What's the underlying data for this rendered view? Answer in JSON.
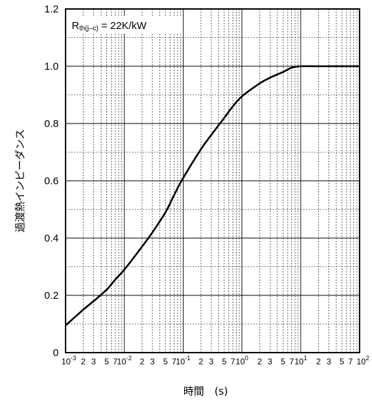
{
  "chart_data": {
    "type": "line",
    "title": "",
    "xlabel": "時間　(s)",
    "ylabel": "過渡熱インピーダンス",
    "x_scale": "log",
    "xlim": [
      0.001,
      100
    ],
    "ylim": [
      0,
      1.2
    ],
    "grid": true,
    "annotation": {
      "main": "R",
      "sub": "th(j–c)",
      "rest": " = 22K/kW"
    },
    "y_ticks": [
      {
        "value": 0,
        "label": "0"
      },
      {
        "value": 0.2,
        "label": "0.2"
      },
      {
        "value": 0.4,
        "label": "0.4"
      },
      {
        "value": 0.6,
        "label": "0.6"
      },
      {
        "value": 0.8,
        "label": "0.8"
      },
      {
        "value": 1.0,
        "label": "1.0"
      },
      {
        "value": 1.2,
        "label": "1.2"
      }
    ],
    "x_decade_labels": [
      {
        "value": 0.001,
        "base": "10",
        "exp": "-3"
      },
      {
        "value": 0.01,
        "base": "10",
        "exp": "-2"
      },
      {
        "value": 0.1,
        "base": "10",
        "exp": "-1"
      },
      {
        "value": 1,
        "base": "10",
        "exp": "0"
      },
      {
        "value": 10,
        "base": "10",
        "exp": "1"
      },
      {
        "value": 100,
        "base": "10",
        "exp": "2"
      }
    ],
    "x_minor_labels": [
      "2",
      "3",
      "5",
      "7"
    ],
    "series": [
      {
        "color": "#000000",
        "x": [
          0.001,
          0.002,
          0.003,
          0.005,
          0.007,
          0.01,
          0.02,
          0.03,
          0.05,
          0.07,
          0.1,
          0.2,
          0.3,
          0.5,
          0.7,
          1,
          2,
          3,
          5,
          7,
          10,
          20,
          50,
          100
        ],
        "y": [
          0.095,
          0.15,
          0.18,
          0.22,
          0.255,
          0.29,
          0.37,
          0.42,
          0.49,
          0.55,
          0.61,
          0.71,
          0.76,
          0.82,
          0.86,
          0.895,
          0.94,
          0.96,
          0.98,
          0.995,
          1.0,
          1.0,
          1.0,
          1.0
        ]
      }
    ]
  }
}
